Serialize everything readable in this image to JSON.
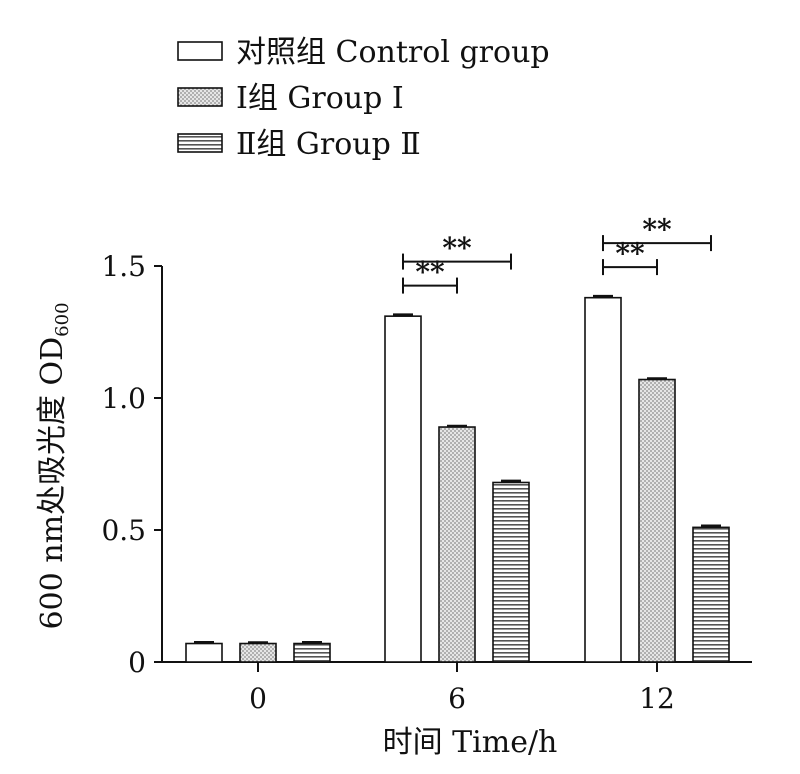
{
  "chart_data": {
    "type": "bar",
    "categories": [
      "0",
      "6",
      "12"
    ],
    "series": [
      {
        "name": "对照组  Control group",
        "values": [
          0.07,
          1.31,
          1.38
        ],
        "errors": [
          0.005,
          0.006,
          0.006
        ],
        "pattern": "blank"
      },
      {
        "name": "Ⅰ组  Group Ⅰ",
        "values": [
          0.07,
          0.89,
          1.07
        ],
        "errors": [
          0.004,
          0.004,
          0.004
        ],
        "pattern": "dots"
      },
      {
        "name": "Ⅱ组  Group Ⅱ",
        "values": [
          0.07,
          0.68,
          0.51
        ],
        "errors": [
          0.005,
          0.006,
          0.006
        ],
        "pattern": "hstripes"
      }
    ],
    "xlabel": "时间  Time/h",
    "ylabel": "600 nm处吸光度  OD",
    "ylabel_sub": "600",
    "yticks": [
      "0",
      "0.5",
      "1.0",
      "1.5"
    ],
    "ylim": [
      0,
      1.5
    ],
    "legend_position": "top-left",
    "significance": [
      {
        "category": "6",
        "from_series": 0,
        "to_series": 1,
        "label": "**"
      },
      {
        "category": "6",
        "from_series": 0,
        "to_series": 2,
        "label": "**"
      },
      {
        "category": "12",
        "from_series": 0,
        "to_series": 1,
        "label": "**"
      },
      {
        "category": "12",
        "from_series": 0,
        "to_series": 2,
        "label": "**"
      }
    ]
  }
}
